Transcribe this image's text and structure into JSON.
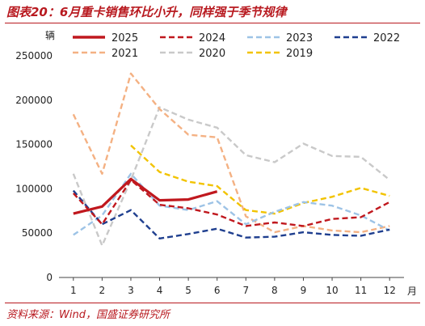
{
  "figure": {
    "title": "图表20：6月重卡销售环比小升，同样强于季节规律",
    "source": "资料来源：Wind，国盛证券研究所"
  },
  "chart_data": {
    "type": "line",
    "title": "",
    "ylabel": "辆",
    "xlabel": "月",
    "ylim": [
      0,
      250000
    ],
    "yticks": [
      0,
      50000,
      100000,
      150000,
      200000,
      250000
    ],
    "ytick_labels": [
      "0",
      "50000",
      "100000",
      "150000",
      "200000",
      "250000"
    ],
    "x": [
      1,
      2,
      3,
      4,
      5,
      6,
      7,
      8,
      9,
      10,
      11,
      12
    ],
    "xtick_labels": [
      "1",
      "2",
      "3",
      "4",
      "5",
      "6",
      "7",
      "8",
      "9",
      "10",
      "11",
      "12"
    ],
    "grid": false,
    "legend_position": "top",
    "series": [
      {
        "name": "2025",
        "color": "#c0181e",
        "style": "solid",
        "values": [
          72000,
          80000,
          111000,
          87000,
          88000,
          97000,
          null,
          null,
          null,
          null,
          null,
          null
        ]
      },
      {
        "name": "2024",
        "color": "#c0181e",
        "style": "dashed",
        "values": [
          95000,
          60000,
          110000,
          82000,
          78000,
          71000,
          58000,
          62000,
          58000,
          66000,
          68000,
          85000
        ]
      },
      {
        "name": "2023",
        "color": "#9dc3e6",
        "style": "dashed",
        "values": [
          48000,
          70000,
          117000,
          81000,
          76000,
          86000,
          60000,
          74000,
          85000,
          81000,
          70000,
          53000
        ]
      },
      {
        "name": "2022",
        "color": "#1f3f8f",
        "style": "dashed",
        "values": [
          98000,
          60000,
          76000,
          44000,
          49000,
          55000,
          45000,
          46000,
          51000,
          48000,
          47000,
          54000
        ]
      },
      {
        "name": "2021",
        "color": "#f4b183",
        "style": "dashed",
        "values": [
          184000,
          117000,
          230000,
          190000,
          161000,
          158000,
          69000,
          51000,
          58000,
          53000,
          51000,
          58000
        ]
      },
      {
        "name": "2020",
        "color": "#c9c9c9",
        "style": "dashed",
        "values": [
          117000,
          36000,
          110000,
          192000,
          178000,
          169000,
          138000,
          130000,
          151000,
          137000,
          136000,
          110000
        ]
      },
      {
        "name": "2019",
        "color": "#f2c300",
        "style": "dashed",
        "values": [
          null,
          null,
          149000,
          119000,
          108000,
          103000,
          76000,
          72000,
          84000,
          91000,
          101000,
          92000
        ]
      }
    ]
  }
}
